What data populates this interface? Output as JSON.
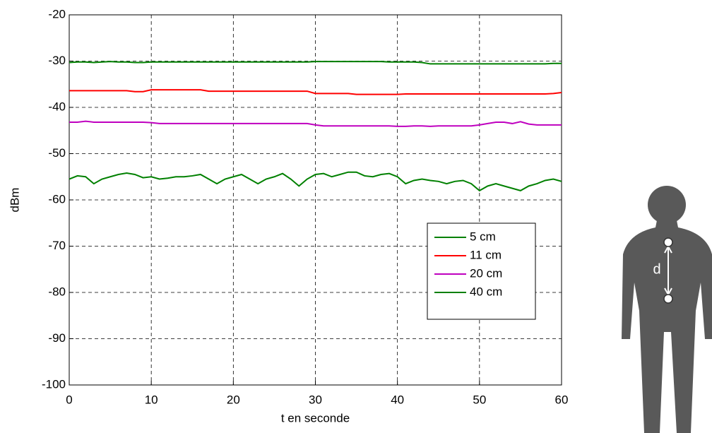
{
  "chart_data": {
    "type": "line",
    "xlabel": "t en seconde",
    "ylabel": "dBm",
    "x": [
      0,
      1,
      2,
      3,
      4,
      5,
      6,
      7,
      8,
      9,
      10,
      11,
      12,
      13,
      14,
      15,
      16,
      17,
      18,
      19,
      20,
      21,
      22,
      23,
      24,
      25,
      26,
      27,
      28,
      29,
      30,
      31,
      32,
      33,
      34,
      35,
      36,
      37,
      38,
      39,
      40,
      41,
      42,
      43,
      44,
      45,
      46,
      47,
      48,
      49,
      50,
      51,
      52,
      53,
      54,
      55,
      56,
      57,
      58,
      59,
      60
    ],
    "series": [
      {
        "name": "5 cm",
        "color": "#008000",
        "values": [
          -30.3,
          -30.2,
          -30.2,
          -30.3,
          -30.2,
          -30.1,
          -30.2,
          -30.2,
          -30.3,
          -30.3,
          -30.2,
          -30.2,
          -30.2,
          -30.2,
          -30.2,
          -30.2,
          -30.2,
          -30.2,
          -30.2,
          -30.2,
          -30.2,
          -30.2,
          -30.2,
          -30.2,
          -30.2,
          -30.2,
          -30.2,
          -30.2,
          -30.2,
          -30.2,
          -30.1,
          -30.1,
          -30.1,
          -30.1,
          -30.1,
          -30.1,
          -30.1,
          -30.1,
          -30.1,
          -30.2,
          -30.2,
          -30.2,
          -30.2,
          -30.3,
          -30.6,
          -30.6,
          -30.6,
          -30.6,
          -30.6,
          -30.6,
          -30.6,
          -30.6,
          -30.6,
          -30.6,
          -30.6,
          -30.6,
          -30.6,
          -30.6,
          -30.6,
          -30.5,
          -30.5
        ]
      },
      {
        "name": "11 cm",
        "color": "#ff0000",
        "values": [
          -36.4,
          -36.4,
          -36.4,
          -36.4,
          -36.4,
          -36.4,
          -36.4,
          -36.4,
          -36.6,
          -36.6,
          -36.2,
          -36.2,
          -36.2,
          -36.2,
          -36.2,
          -36.2,
          -36.2,
          -36.5,
          -36.5,
          -36.5,
          -36.5,
          -36.5,
          -36.5,
          -36.5,
          -36.5,
          -36.5,
          -36.5,
          -36.5,
          -36.5,
          -36.5,
          -37.0,
          -37.0,
          -37.0,
          -37.0,
          -37.0,
          -37.2,
          -37.2,
          -37.2,
          -37.2,
          -37.2,
          -37.2,
          -37.1,
          -37.1,
          -37.1,
          -37.1,
          -37.1,
          -37.1,
          -37.1,
          -37.1,
          -37.1,
          -37.1,
          -37.1,
          -37.1,
          -37.1,
          -37.1,
          -37.1,
          -37.1,
          -37.1,
          -37.1,
          -37.0,
          -36.8
        ]
      },
      {
        "name": "20 cm",
        "color": "#bf00bf",
        "values": [
          -43.2,
          -43.2,
          -43.0,
          -43.2,
          -43.2,
          -43.2,
          -43.2,
          -43.2,
          -43.2,
          -43.2,
          -43.3,
          -43.5,
          -43.5,
          -43.5,
          -43.5,
          -43.5,
          -43.5,
          -43.5,
          -43.5,
          -43.5,
          -43.5,
          -43.5,
          -43.5,
          -43.5,
          -43.5,
          -43.5,
          -43.5,
          -43.5,
          -43.5,
          -43.5,
          -43.8,
          -44.0,
          -44.0,
          -44.0,
          -44.0,
          -44.0,
          -44.0,
          -44.0,
          -44.0,
          -44.0,
          -44.1,
          -44.1,
          -44.0,
          -44.0,
          -44.1,
          -44.0,
          -44.0,
          -44.0,
          -44.0,
          -44.0,
          -43.8,
          -43.5,
          -43.2,
          -43.2,
          -43.5,
          -43.1,
          -43.6,
          -43.8,
          -43.8,
          -43.8,
          -43.8
        ]
      },
      {
        "name": "40 cm",
        "color": "#008000",
        "values": [
          -55.5,
          -54.8,
          -55.0,
          -56.5,
          -55.5,
          -55.0,
          -54.5,
          -54.2,
          -54.5,
          -55.2,
          -55.0,
          -55.5,
          -55.3,
          -55.0,
          -55.0,
          -54.8,
          -54.5,
          -55.5,
          -56.5,
          -55.5,
          -55.0,
          -54.5,
          -55.5,
          -56.5,
          -55.5,
          -55.0,
          -54.3,
          -55.5,
          -57.0,
          -55.5,
          -54.5,
          -54.3,
          -55.0,
          -54.5,
          -54.0,
          -54.0,
          -54.8,
          -55.0,
          -54.5,
          -54.3,
          -55.0,
          -56.5,
          -55.8,
          -55.5,
          -55.8,
          -56.0,
          -56.5,
          -56.0,
          -55.8,
          -56.5,
          -58.0,
          -57.0,
          -56.5,
          -57.0,
          -57.5,
          -58.0,
          -57.0,
          -56.5,
          -55.8,
          -55.5,
          -56.0
        ]
      }
    ],
    "xlim": [
      0,
      60
    ],
    "xticks": [
      0,
      10,
      20,
      30,
      40,
      50,
      60
    ],
    "ylim": [
      -100,
      -20
    ],
    "yticks": [
      -100,
      -90,
      -80,
      -70,
      -60,
      -50,
      -40,
      -30,
      -20
    ],
    "grid": true,
    "legend": "lower right"
  },
  "illustration": {
    "label": "d"
  }
}
